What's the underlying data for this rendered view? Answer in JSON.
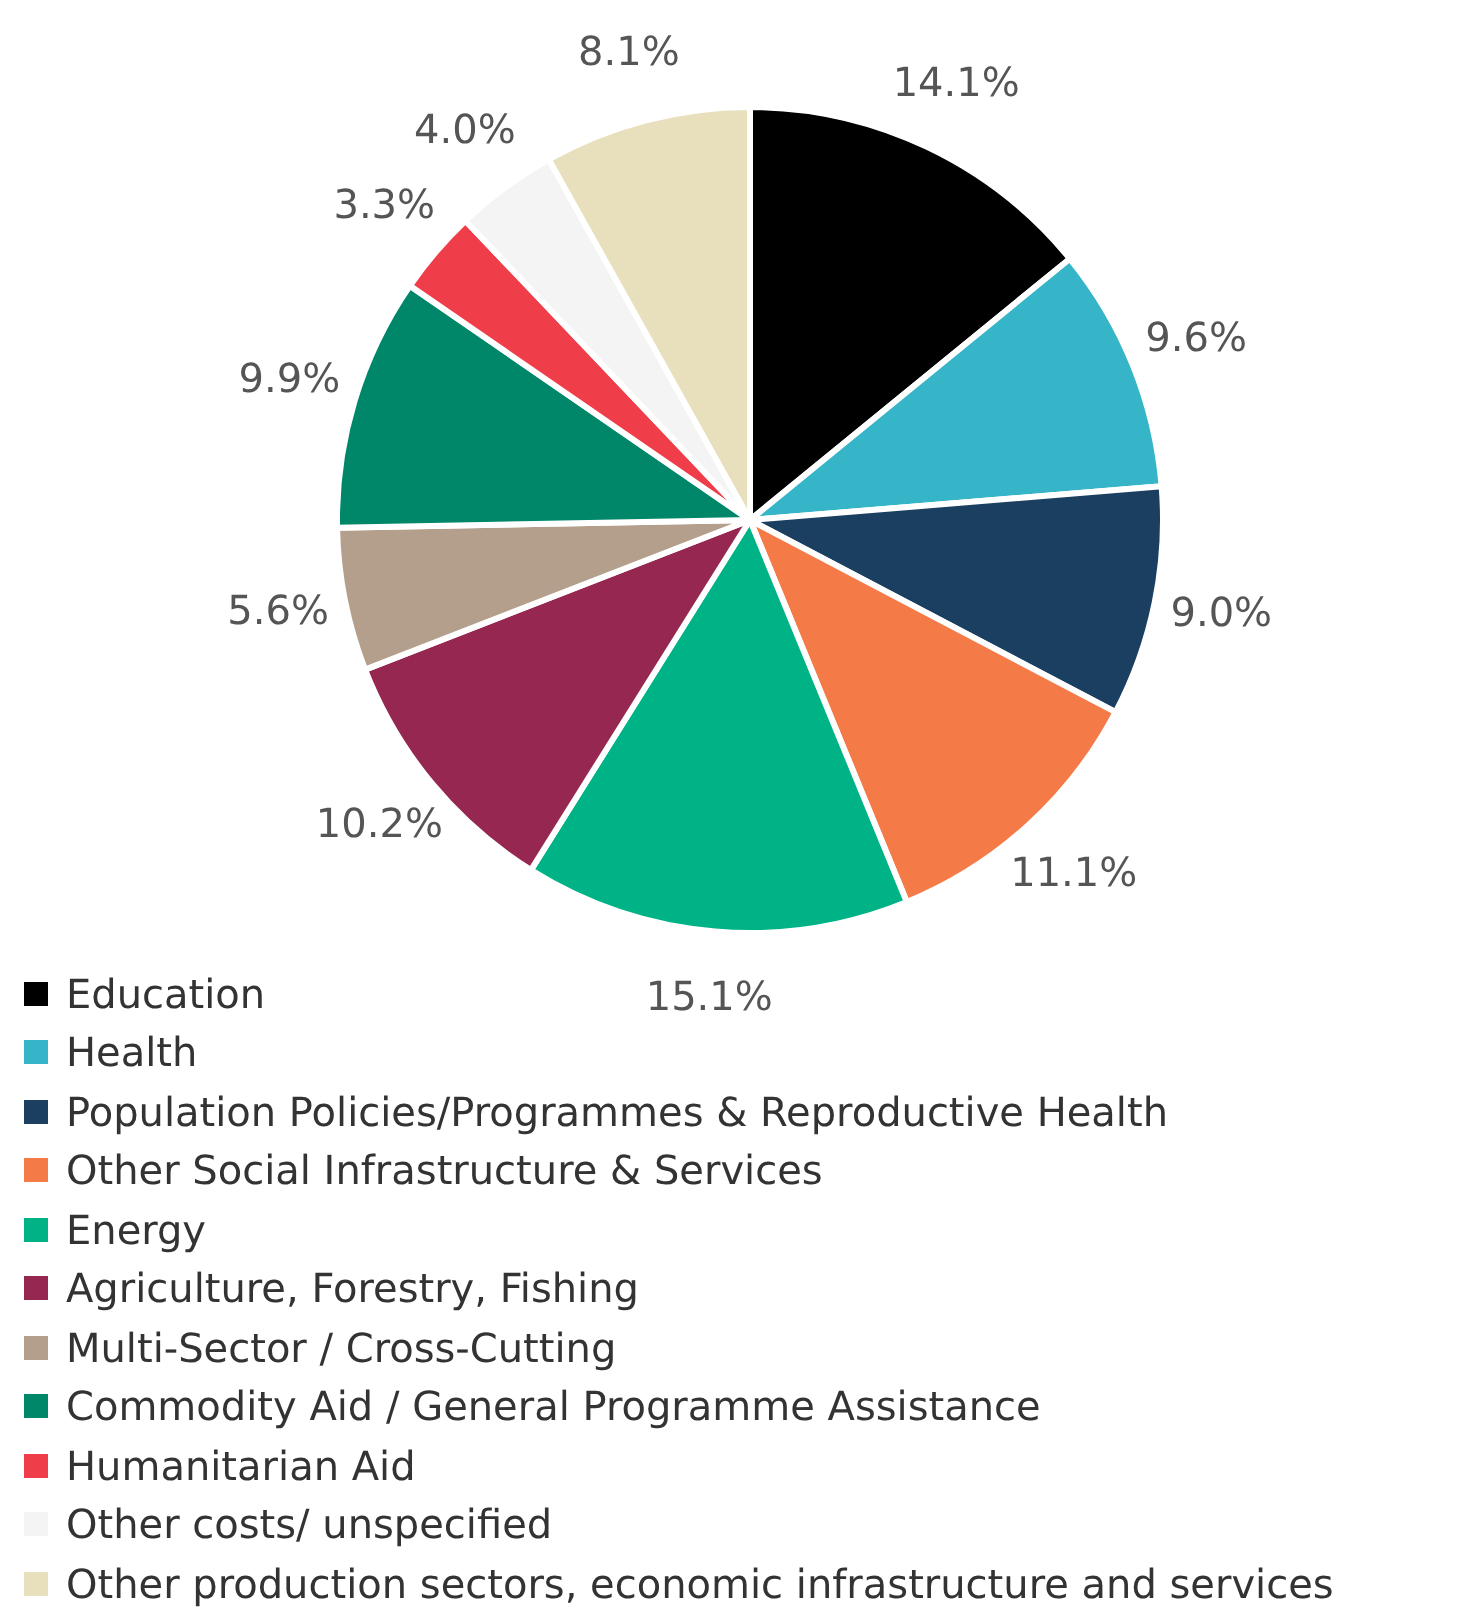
{
  "chart_data": {
    "type": "pie",
    "categories": [
      "Education",
      "Health",
      "Population Policies/Programmes & Reproductive Health",
      "Other Social Infrastructure & Services",
      "Energy",
      "Agriculture, Forestry, Fishing",
      "Multi-Sector / Cross-Cutting",
      "Commodity Aid / General Programme Assistance",
      "Humanitarian Aid",
      "Other costs/ unspecified",
      "Other production sectors, economic infrastructure and services"
    ],
    "values": [
      14.1,
      9.6,
      9.0,
      11.1,
      15.1,
      10.2,
      5.6,
      9.9,
      3.3,
      4.0,
      8.1
    ],
    "value_labels": [
      "14.1%",
      "9.6%",
      "9.0%",
      "11.1%",
      "15.1%",
      "10.2%",
      "5.6%",
      "9.9%",
      "3.3%",
      "4.0%",
      "8.1%"
    ],
    "colors": [
      "#000000",
      "#36b5c8",
      "#1a3f60",
      "#f47b48",
      "#00b386",
      "#952751",
      "#b39f8c",
      "#00876a",
      "#ef3e4a",
      "#f4f4f4",
      "#e8dfbd"
    ],
    "legend": "bottom"
  }
}
